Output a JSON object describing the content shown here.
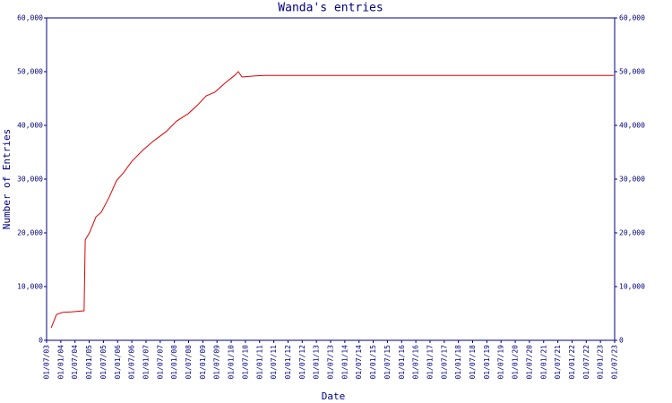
{
  "chart_data": {
    "type": "line",
    "title": "Wanda's entries",
    "xlabel": "Date",
    "ylabel": "Number of Entries",
    "x": [
      2003.66,
      2003.85,
      2004.07,
      2004.38,
      2004.82,
      2004.86,
      2005.01,
      2005.24,
      2005.42,
      2005.71,
      2005.96,
      2006.21,
      2006.5,
      2006.91,
      2007.29,
      2007.7,
      2008.08,
      2008.49,
      2008.8,
      2009.12,
      2009.43,
      2009.81,
      2010.12,
      2010.25,
      2010.38,
      2010.85,
      2011.17,
      2023.47
    ],
    "series": [
      {
        "color": "#e00000",
        "values": [
          2300,
          4800,
          5200,
          5300,
          5500,
          18700,
          20000,
          23000,
          23800,
          26700,
          29700,
          31200,
          33300,
          35500,
          37200,
          38800,
          40800,
          42200,
          43700,
          45500,
          46200,
          48000,
          49300,
          50000,
          49000,
          49200,
          49300,
          49300
        ]
      }
    ],
    "xlim": [
      2003.5,
      2023.5
    ],
    "xticks": [
      {
        "value": 2003.5,
        "label": "01/07/03"
      },
      {
        "value": 2004,
        "label": "01/01/04"
      },
      {
        "value": 2004.5,
        "label": "01/07/04"
      },
      {
        "value": 2005,
        "label": "01/01/05"
      },
      {
        "value": 2005.5,
        "label": "01/07/05"
      },
      {
        "value": 2006,
        "label": "01/01/06"
      },
      {
        "value": 2006.5,
        "label": "01/07/06"
      },
      {
        "value": 2007,
        "label": "01/01/07"
      },
      {
        "value": 2007.5,
        "label": "01/07/07"
      },
      {
        "value": 2008,
        "label": "01/01/08"
      },
      {
        "value": 2008.5,
        "label": "01/07/08"
      },
      {
        "value": 2009,
        "label": "01/01/09"
      },
      {
        "value": 2009.5,
        "label": "01/07/09"
      },
      {
        "value": 2010,
        "label": "01/01/10"
      },
      {
        "value": 2010.5,
        "label": "01/07/10"
      },
      {
        "value": 2011,
        "label": "01/01/11"
      },
      {
        "value": 2011.5,
        "label": "01/07/11"
      },
      {
        "value": 2012,
        "label": "01/01/12"
      },
      {
        "value": 2012.5,
        "label": "01/07/12"
      },
      {
        "value": 2013,
        "label": "01/01/13"
      },
      {
        "value": 2013.5,
        "label": "01/07/13"
      },
      {
        "value": 2014,
        "label": "01/01/14"
      },
      {
        "value": 2014.5,
        "label": "01/07/14"
      },
      {
        "value": 2015,
        "label": "01/01/15"
      },
      {
        "value": 2015.5,
        "label": "01/07/15"
      },
      {
        "value": 2016,
        "label": "01/01/16"
      },
      {
        "value": 2016.5,
        "label": "01/07/16"
      },
      {
        "value": 2017,
        "label": "01/01/17"
      },
      {
        "value": 2017.5,
        "label": "01/07/17"
      },
      {
        "value": 2018,
        "label": "01/01/18"
      },
      {
        "value": 2018.5,
        "label": "01/07/18"
      },
      {
        "value": 2019,
        "label": "01/01/19"
      },
      {
        "value": 2019.5,
        "label": "01/07/19"
      },
      {
        "value": 2020,
        "label": "01/01/20"
      },
      {
        "value": 2020.5,
        "label": "01/07/20"
      },
      {
        "value": 2021,
        "label": "01/01/21"
      },
      {
        "value": 2021.5,
        "label": "01/07/21"
      },
      {
        "value": 2022,
        "label": "01/01/22"
      },
      {
        "value": 2022.5,
        "label": "01/07/22"
      },
      {
        "value": 2023,
        "label": "01/01/23"
      },
      {
        "value": 2023.5,
        "label": "01/07/23"
      }
    ],
    "ylim": [
      0,
      60000
    ],
    "yticks": [
      0,
      {
        "value": 10000,
        "label": "10,000"
      },
      {
        "value": 20000,
        "label": "20,000"
      },
      {
        "value": 30000,
        "label": "30,000"
      },
      {
        "value": 40000,
        "label": "40,000"
      },
      {
        "value": 50000,
        "label": "50,000"
      },
      {
        "value": 60000,
        "label": "60,000"
      }
    ],
    "axis_color": "#000080"
  }
}
